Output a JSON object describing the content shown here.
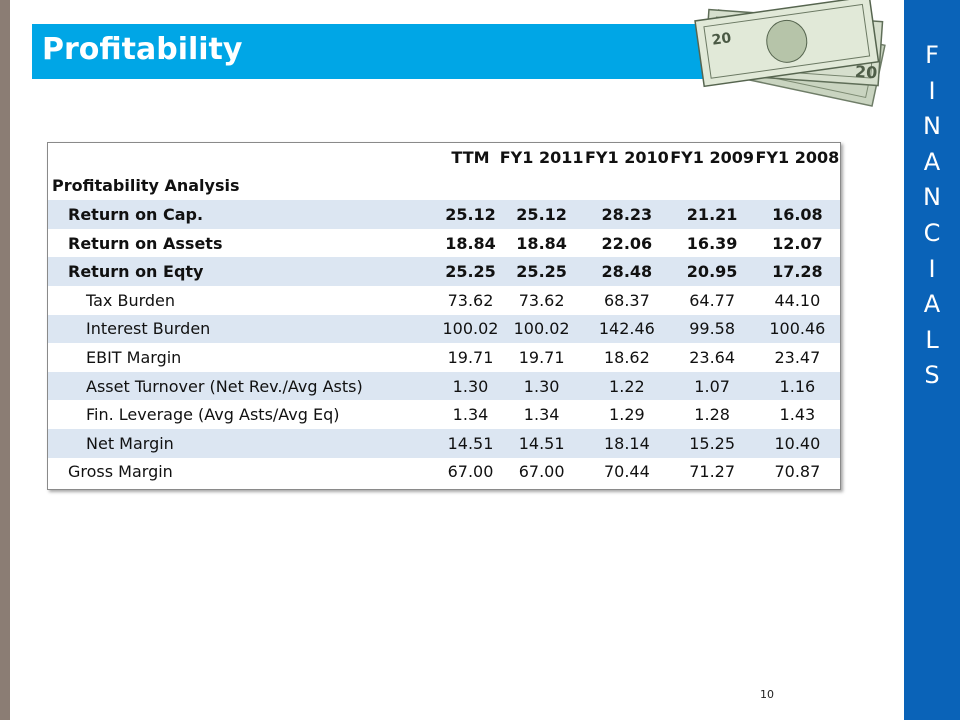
{
  "title": "Profitability",
  "side_letters": [
    "F",
    "I",
    "N",
    "A",
    "N",
    "C",
    "I",
    "A",
    "L",
    "S"
  ],
  "table": {
    "columns": [
      "TTM",
      "FY1 2011",
      "FY1 2010",
      "FY1 2009",
      "FY1 2008"
    ],
    "section_label": "Profitability Analysis",
    "rows": [
      {
        "label": "Return on Cap.",
        "values": [
          "25.12",
          "25.12",
          "28.23",
          "21.21",
          "16.08"
        ]
      },
      {
        "label": "Return on Assets",
        "values": [
          "18.84",
          "18.84",
          "22.06",
          "16.39",
          "12.07"
        ]
      },
      {
        "label": "Return on Eqty",
        "values": [
          "25.25",
          "25.25",
          "28.48",
          "20.95",
          "17.28"
        ]
      },
      {
        "label": "Tax Burden",
        "values": [
          "73.62",
          "73.62",
          "68.37",
          "64.77",
          "44.10"
        ]
      },
      {
        "label": "Interest Burden",
        "values": [
          "100.02",
          "100.02",
          "142.46",
          "99.58",
          "100.46"
        ]
      },
      {
        "label": "EBIT Margin",
        "values": [
          "19.71",
          "19.71",
          "18.62",
          "23.64",
          "23.47"
        ]
      },
      {
        "label": "Asset Turnover (Net Rev./Avg Asts)",
        "values": [
          "1.30",
          "1.30",
          "1.22",
          "1.07",
          "1.16"
        ]
      },
      {
        "label": "Fin. Leverage (Avg Asts/Avg Eq)",
        "values": [
          "1.34",
          "1.34",
          "1.29",
          "1.28",
          "1.43"
        ]
      },
      {
        "label": "Net Margin",
        "values": [
          "14.51",
          "14.51",
          "18.14",
          "15.25",
          "10.40"
        ]
      },
      {
        "label": "Gross Margin",
        "values": [
          "67.00",
          "67.00",
          "70.44",
          "71.27",
          "70.87"
        ]
      }
    ]
  },
  "page_number": "10",
  "colors": {
    "title_bar": "#00a6e6",
    "side_bar": "#0a63b8",
    "row_shade": "#dce6f2"
  },
  "icons": {
    "decoration": "money-bills-icon"
  }
}
